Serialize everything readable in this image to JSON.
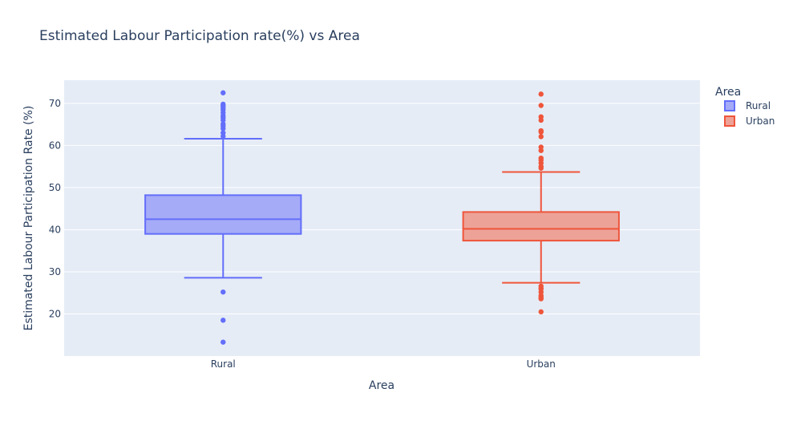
{
  "chart_data": {
    "type": "box",
    "title": "Estimated Labour Participation rate(%) vs Area",
    "xlabel": "Area",
    "ylabel": "Estimated Labour Participation Rate (%)",
    "categories": [
      "Rural",
      "Urban"
    ],
    "ylim": [
      10,
      75.5
    ],
    "yticks": [
      20,
      30,
      40,
      50,
      60,
      70
    ],
    "grid": true,
    "legend": {
      "title": "Area",
      "position": "top-right",
      "entries": [
        "Rural",
        "Urban"
      ]
    },
    "series": [
      {
        "name": "Rural",
        "color": "#636efa",
        "fill": "#a5abf7",
        "q1": 39.0,
        "median": 42.5,
        "q3": 48.2,
        "lower_fence": 28.6,
        "upper_fence": 61.6,
        "outliers": [
          72.5,
          69.8,
          69.4,
          69.0,
          68.5,
          67.8,
          67.1,
          66.6,
          66.0,
          65.1,
          64.6,
          64.0,
          63.0,
          62.2,
          25.2,
          18.5,
          13.3
        ]
      },
      {
        "name": "Urban",
        "color": "#ef553b",
        "fill": "#eda297",
        "q1": 37.4,
        "median": 40.2,
        "q3": 44.2,
        "lower_fence": 27.4,
        "upper_fence": 53.7,
        "outliers": [
          72.2,
          69.5,
          66.8,
          66.0,
          63.5,
          63.2,
          62.1,
          59.6,
          58.8,
          57.0,
          56.5,
          55.8,
          55.0,
          54.6,
          26.6,
          26.1,
          25.9,
          25.2,
          24.4,
          24.0,
          23.6,
          20.5
        ]
      }
    ]
  }
}
